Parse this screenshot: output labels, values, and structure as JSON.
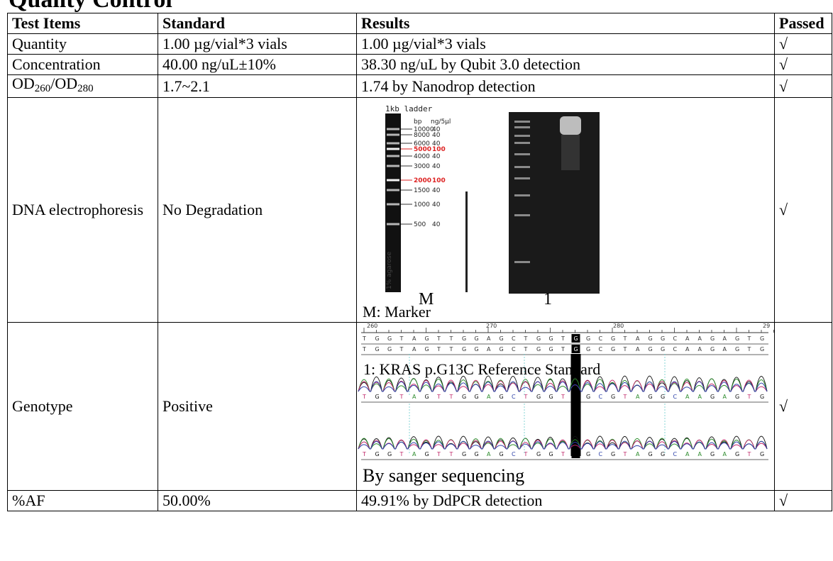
{
  "heading": "Quality Control",
  "columns": [
    "Test Items",
    "Standard",
    "Results",
    "Passed"
  ],
  "rows": {
    "quantity": {
      "item": "Quantity",
      "standard": "1.00 µg/vial*3 vials",
      "result": "1.00 µg/vial*3 vials",
      "passed": "√"
    },
    "concentration": {
      "item": "Concentration",
      "standard": "40.00 ng/uL±10%",
      "result": "38.30 ng/uL by Qubit 3.0 detection",
      "passed": "√"
    },
    "od": {
      "item_prefix1": "OD",
      "item_sub1": "260",
      "item_sep": "/OD",
      "item_sub2": "280",
      "standard": "1.7~2.1",
      "result": "1.74 by Nanodrop detection",
      "passed": "√"
    },
    "dna": {
      "item": "DNA electrophoresis",
      "standard": "No Degradation",
      "passed": "√",
      "ladder_title": "1kb ladder",
      "ladder_header_bp": "bp",
      "ladder_header_ng": "ng/5µl",
      "ladder_bands": [
        {
          "bp": "10000",
          "ng": "40",
          "highlight": false
        },
        {
          "bp": "8000",
          "ng": "40",
          "highlight": false
        },
        {
          "bp": "6000",
          "ng": "40",
          "highlight": false
        },
        {
          "bp": "5000",
          "ng": "100",
          "highlight": true
        },
        {
          "bp": "4000",
          "ng": "40",
          "highlight": false
        },
        {
          "bp": "3000",
          "ng": "40",
          "highlight": false
        },
        {
          "bp": "2000",
          "ng": "100",
          "highlight": true
        },
        {
          "bp": "1500",
          "ng": "40",
          "highlight": false
        },
        {
          "bp": "1000",
          "ng": "40",
          "highlight": false
        },
        {
          "bp": "500",
          "ng": "40",
          "highlight": false
        }
      ],
      "agarose_label": "1% agarose",
      "lane_m": "M",
      "lane_1": "1",
      "legend_m": "M: Marker",
      "legend_1": "1: KRAS p.G13C Reference Standard"
    },
    "genotype": {
      "item": "Genotype",
      "standard": "Positive",
      "passed": "√",
      "ruler_ticks": [
        "260",
        "270",
        "280",
        "29"
      ],
      "sequence": "TGGTAGTTGGAGCTGGTGGCGTAGGCAAGAGTG",
      "highlight_index": 17,
      "caption": "By sanger sequencing"
    },
    "af": {
      "item": "%AF",
      "standard": "50.00%",
      "result": "49.91% by DdPCR detection",
      "passed": "√"
    }
  }
}
